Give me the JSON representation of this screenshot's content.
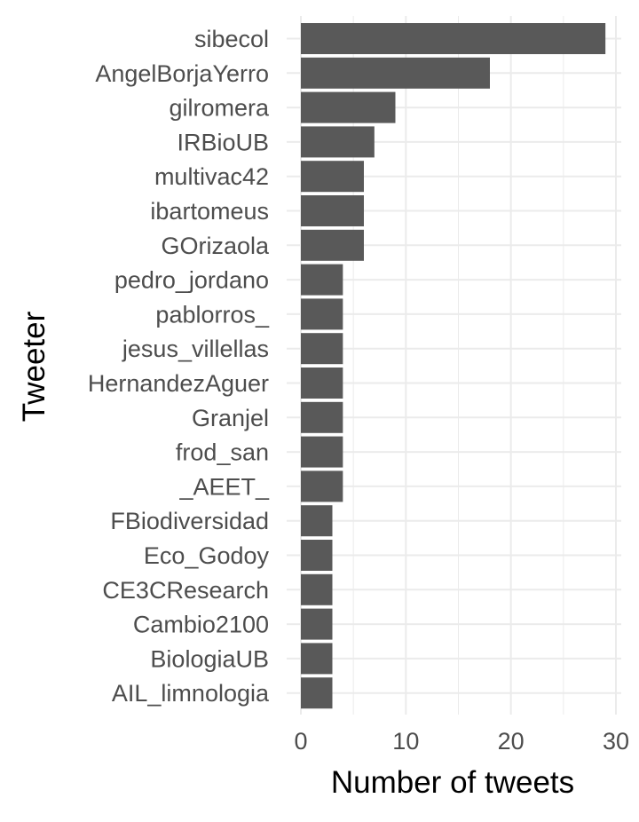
{
  "chart_data": {
    "type": "bar",
    "orientation": "horizontal",
    "xlabel": "Number of tweets",
    "ylabel": "Tweeter",
    "xlim": [
      0,
      30
    ],
    "xticks": [
      0,
      10,
      20,
      30
    ],
    "grid": true,
    "bar_color": "#595959",
    "grid_color": "#ebebeb",
    "categories": [
      "sibecol",
      "AngelBorjaYerro",
      "gilromera",
      "IRBioUB",
      "multivac42",
      "ibartomeus",
      "GOrizaola",
      "pedro_jordano",
      "pablorros_",
      "jesus_villellas",
      "HernandezAguer",
      "Granjel",
      "frod_san",
      "_AEET_",
      "FBiodiversidad",
      "Eco_Godoy",
      "CE3CResearch",
      "Cambio2100",
      "BiologiaUB",
      "AIL_limnologia"
    ],
    "values": [
      29,
      18,
      9,
      7,
      6,
      6,
      6,
      4,
      4,
      4,
      4,
      4,
      4,
      4,
      3,
      3,
      3,
      3,
      3,
      3
    ]
  }
}
